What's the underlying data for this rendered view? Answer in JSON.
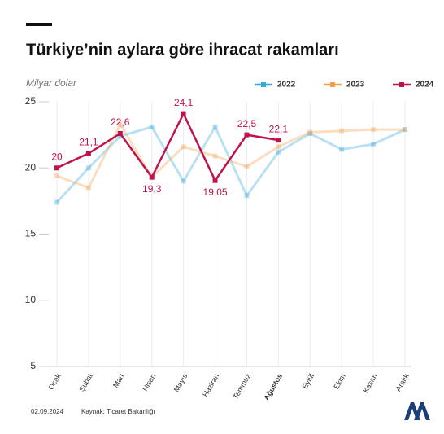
{
  "chart_data": {
    "type": "line",
    "title": "Türkiye’nin aylara göre ihracat rakamları",
    "y_label": "Milyar dolar",
    "categories": [
      "Ocak",
      "Şubat",
      "Mart",
      "Nisan",
      "Mayıs",
      "Haziran",
      "Temmuz",
      "Ağustos",
      "Eylül",
      "Ekim",
      "Kasım",
      "Aralık"
    ],
    "emphasis_category": 7,
    "series": [
      {
        "name": "2022",
        "color": "#3aa8dc",
        "faded": true,
        "values": [
          17.4,
          20.0,
          22.4,
          23.1,
          19.0,
          23.1,
          17.9,
          21.2,
          22.6,
          21.4,
          21.8,
          22.9
        ]
      },
      {
        "name": "2023",
        "color": "#f0a050",
        "faded": true,
        "values": [
          19.4,
          18.5,
          23.3,
          19.3,
          21.6,
          20.9,
          20.1,
          21.6,
          22.7,
          22.8,
          22.9,
          22.9
        ]
      },
      {
        "name": "2024",
        "color": "#c0134c",
        "faded": false,
        "values": [
          20,
          21.1,
          22.6,
          19.3,
          24.1,
          19.05,
          22.5,
          22.1,
          null,
          null,
          null,
          null
        ],
        "value_labels": [
          "20",
          "21,1",
          "22,6",
          "19,3",
          "24,1",
          "19,05",
          "22,5",
          "22,1",
          null,
          null,
          null,
          null
        ]
      }
    ],
    "ylim": [
      5,
      25
    ],
    "yticks": [
      5,
      10,
      15,
      20,
      25
    ],
    "grid": true,
    "legend": "top-right",
    "date": "02.09.2024",
    "source": "Kaynak: Ticaret Bakanlığı"
  }
}
